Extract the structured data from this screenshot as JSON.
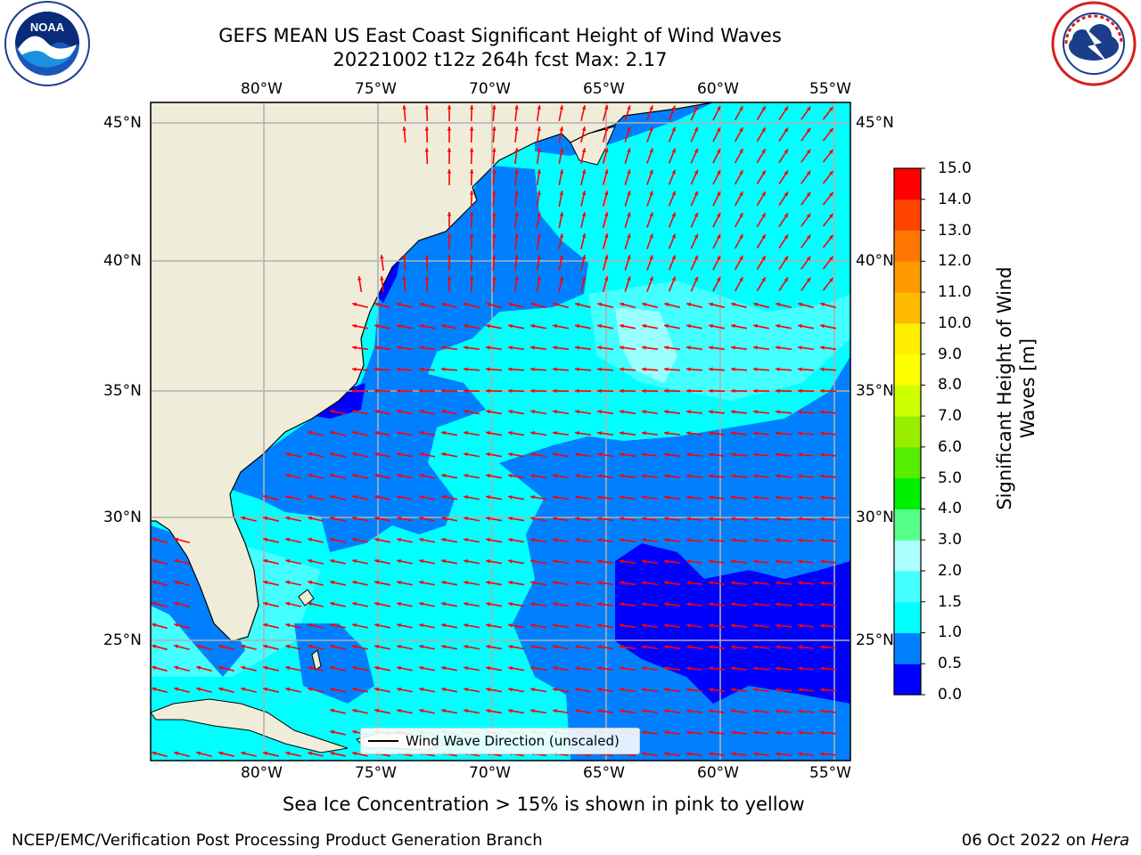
{
  "title": {
    "line1": "GEFS MEAN US East Coast Significant Height of Wind Waves",
    "line2": "20221002 t12z 264h fcst   Max: 2.17"
  },
  "logos": {
    "left": "NOAA",
    "right": "NATIONAL WEATHER SERVICE"
  },
  "map": {
    "lon_ticks": [
      "80°W",
      "75°W",
      "70°W",
      "65°W",
      "60°W",
      "55°W"
    ],
    "lat_ticks": [
      "45°N",
      "40°N",
      "35°N",
      "30°N",
      "25°N"
    ],
    "extent": {
      "lon": [
        -85,
        -54.5
      ],
      "lat": [
        20.5,
        46
      ]
    },
    "grid": true,
    "legend": "Wind Wave Direction (unscaled)",
    "land_color": "#efedd9",
    "arrow_color": "#ff0000"
  },
  "colorbar": {
    "label": "Significant Height of Wind Waves [m]",
    "label_line1": "Significant Height of Wind",
    "label_line2": "Waves [m]",
    "ticks": [
      "0.0",
      "0.5",
      "1.0",
      "1.5",
      "2.0",
      "3.0",
      "4.0",
      "5.0",
      "6.0",
      "7.0",
      "8.0",
      "9.0",
      "10.0",
      "11.0",
      "12.0",
      "13.0",
      "14.0",
      "15.0"
    ],
    "colors": [
      "#0000ff",
      "#0080ff",
      "#00ffff",
      "#44ffff",
      "#aaffff",
      "#55ff88",
      "#00ee00",
      "#55ee00",
      "#99ee00",
      "#ccff00",
      "#ffff00",
      "#ffee00",
      "#ffbb00",
      "#ff9900",
      "#ff7700",
      "#ff4400",
      "#ff0000"
    ]
  },
  "note": "Sea Ice Concentration > 15% is shown in pink to yellow",
  "footer": {
    "left": "NCEP/EMC/Verification Post Processing Product Generation Branch",
    "right_date": "06 Oct 2022 on ",
    "right_machine": "Hera"
  }
}
